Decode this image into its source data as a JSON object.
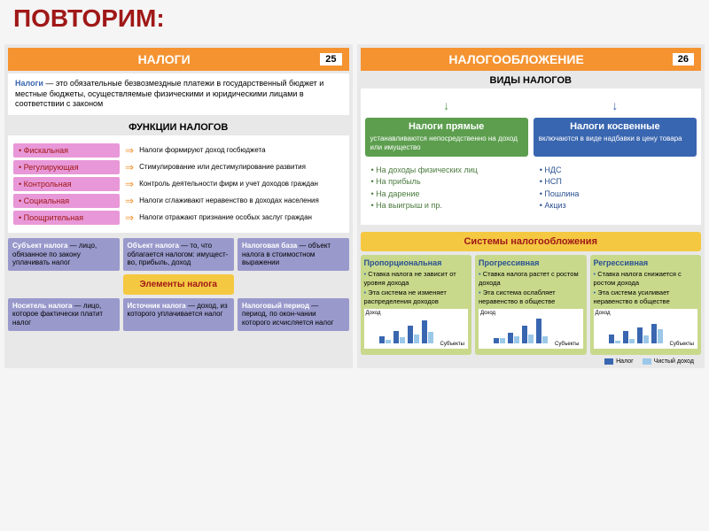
{
  "title": "ПОВТОРИМ:",
  "left": {
    "header": "НАЛОГИ",
    "page": "25",
    "definition_term": "Налоги",
    "definition": " — это обязательные безвозмездные платежи в государственный бюджет и местные бюджеты, осуществляемые физическими и юридическими лицами в соответствии с законом",
    "functions_header": "ФУНКЦИИ НАЛОГОВ",
    "functions": [
      {
        "name": "Фискальная",
        "desc": "Налоги формируют доход госбюджета"
      },
      {
        "name": "Регулирующая",
        "desc": "Стимулирование или дестимулирование развития"
      },
      {
        "name": "Контрольная",
        "desc": "Контроль деятельности фирм и учет доходов граждан"
      },
      {
        "name": "Социальная",
        "desc": "Налоги сглаживают неравенство в доходах населения"
      },
      {
        "name": "Поощрительная",
        "desc": "Налоги отражают признание особых заслуг граждан"
      }
    ],
    "elements": {
      "center": "Элементы налога",
      "boxes": [
        {
          "title": "Субъект налога",
          "desc": " — лицо, обязанное по закону уплачивать налог"
        },
        {
          "title": "Объект налога",
          "desc": " — то, что облагается налогом: имущест-во, прибыль, доход"
        },
        {
          "title": "Налоговая база",
          "desc": " — объект налога в стоимостном выражении"
        },
        {
          "title": "Носитель налога",
          "desc": " — лицо, которое фактически платит налог"
        },
        {
          "title": "Источник налога",
          "desc": " — доход, из которого уплачивается налог"
        },
        {
          "title": "Налоговый период",
          "desc": " — период, по окон-чании которого исчисляется налог"
        }
      ]
    }
  },
  "right": {
    "header": "НАЛОГООБЛОЖЕНИЕ",
    "page": "26",
    "types_header": "ВИДЫ НАЛОГОВ",
    "direct": {
      "title": "Налоги прямые",
      "desc": "устанавливаются непосредственно на доход или имущество",
      "items": [
        "На доходы физических лиц",
        "На прибыль",
        "На дарение",
        "На выигрыш и пр."
      ]
    },
    "indirect": {
      "title": "Налоги косвенные",
      "desc": "включаются в виде надбавки в цену товара",
      "items": [
        "НДС",
        "НСП",
        "Пошлина",
        "Акциз"
      ]
    },
    "systems_header": "Системы налогообложения",
    "systems": [
      {
        "title": "Пропорциональная",
        "bullets": [
          "Ставка налога не зависит от уровня дохода",
          "Эта система не изменяет распределения доходов"
        ],
        "chart": {
          "dark": [
            8,
            14,
            20,
            26
          ],
          "light": [
            4,
            7,
            10,
            13
          ]
        }
      },
      {
        "title": "Прогрессивная",
        "bullets": [
          "Ставка налога растет с ростом дохода",
          "Эта система ослабляет неравенство в обществе"
        ],
        "chart": {
          "dark": [
            6,
            12,
            20,
            28
          ],
          "light": [
            6,
            8,
            10,
            8
          ]
        }
      },
      {
        "title": "Регрессивная",
        "bullets": [
          "Ставка налога снижается с ростом дохода",
          "Эта система усиливает неравенство в обществе"
        ],
        "chart": {
          "dark": [
            10,
            14,
            18,
            22
          ],
          "light": [
            3,
            5,
            9,
            16
          ]
        }
      }
    ],
    "chart_y": "Доход",
    "chart_x": "Субъекты",
    "legend_tax": "Налог",
    "legend_net": "Чистый доход",
    "colors": {
      "tax": "#3966b0",
      "net": "#9bc8e8"
    }
  }
}
